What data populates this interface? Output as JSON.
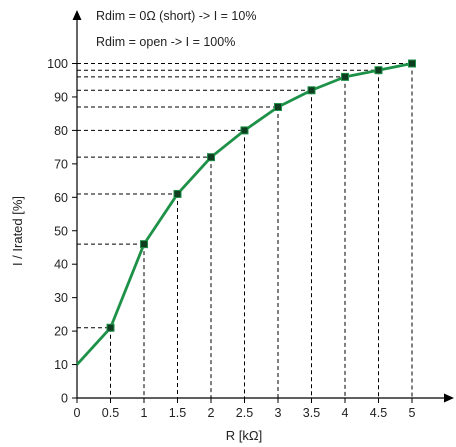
{
  "chart_data": {
    "type": "line",
    "xlabel": "R [kΩ]",
    "ylabel": "I / Irated [%]",
    "annotations": [
      "Rdim = 0Ω (short) -> I = 10%",
      "Rdim = open -> I = 100%"
    ],
    "x_ticks": [
      "0",
      "0.5",
      "1",
      "1.5",
      "2",
      "2.5",
      "3",
      "3.5",
      "4",
      "4.5",
      "5"
    ],
    "y_ticks": [
      "0",
      "10",
      "20",
      "30",
      "40",
      "50",
      "60",
      "70",
      "80",
      "90",
      "100"
    ],
    "xlim": [
      0,
      5
    ],
    "ylim": [
      0,
      100
    ],
    "grid": false,
    "series": [
      {
        "x": [
          0,
          0.5,
          1,
          1.5,
          2,
          2.5,
          3,
          3.5,
          4,
          4.5,
          5
        ],
        "y": [
          10,
          21,
          46,
          61,
          72,
          80,
          87,
          92,
          96,
          98,
          100
        ],
        "color": "#1e9148",
        "marker": "square"
      }
    ],
    "guide_line_color": "#000000"
  }
}
